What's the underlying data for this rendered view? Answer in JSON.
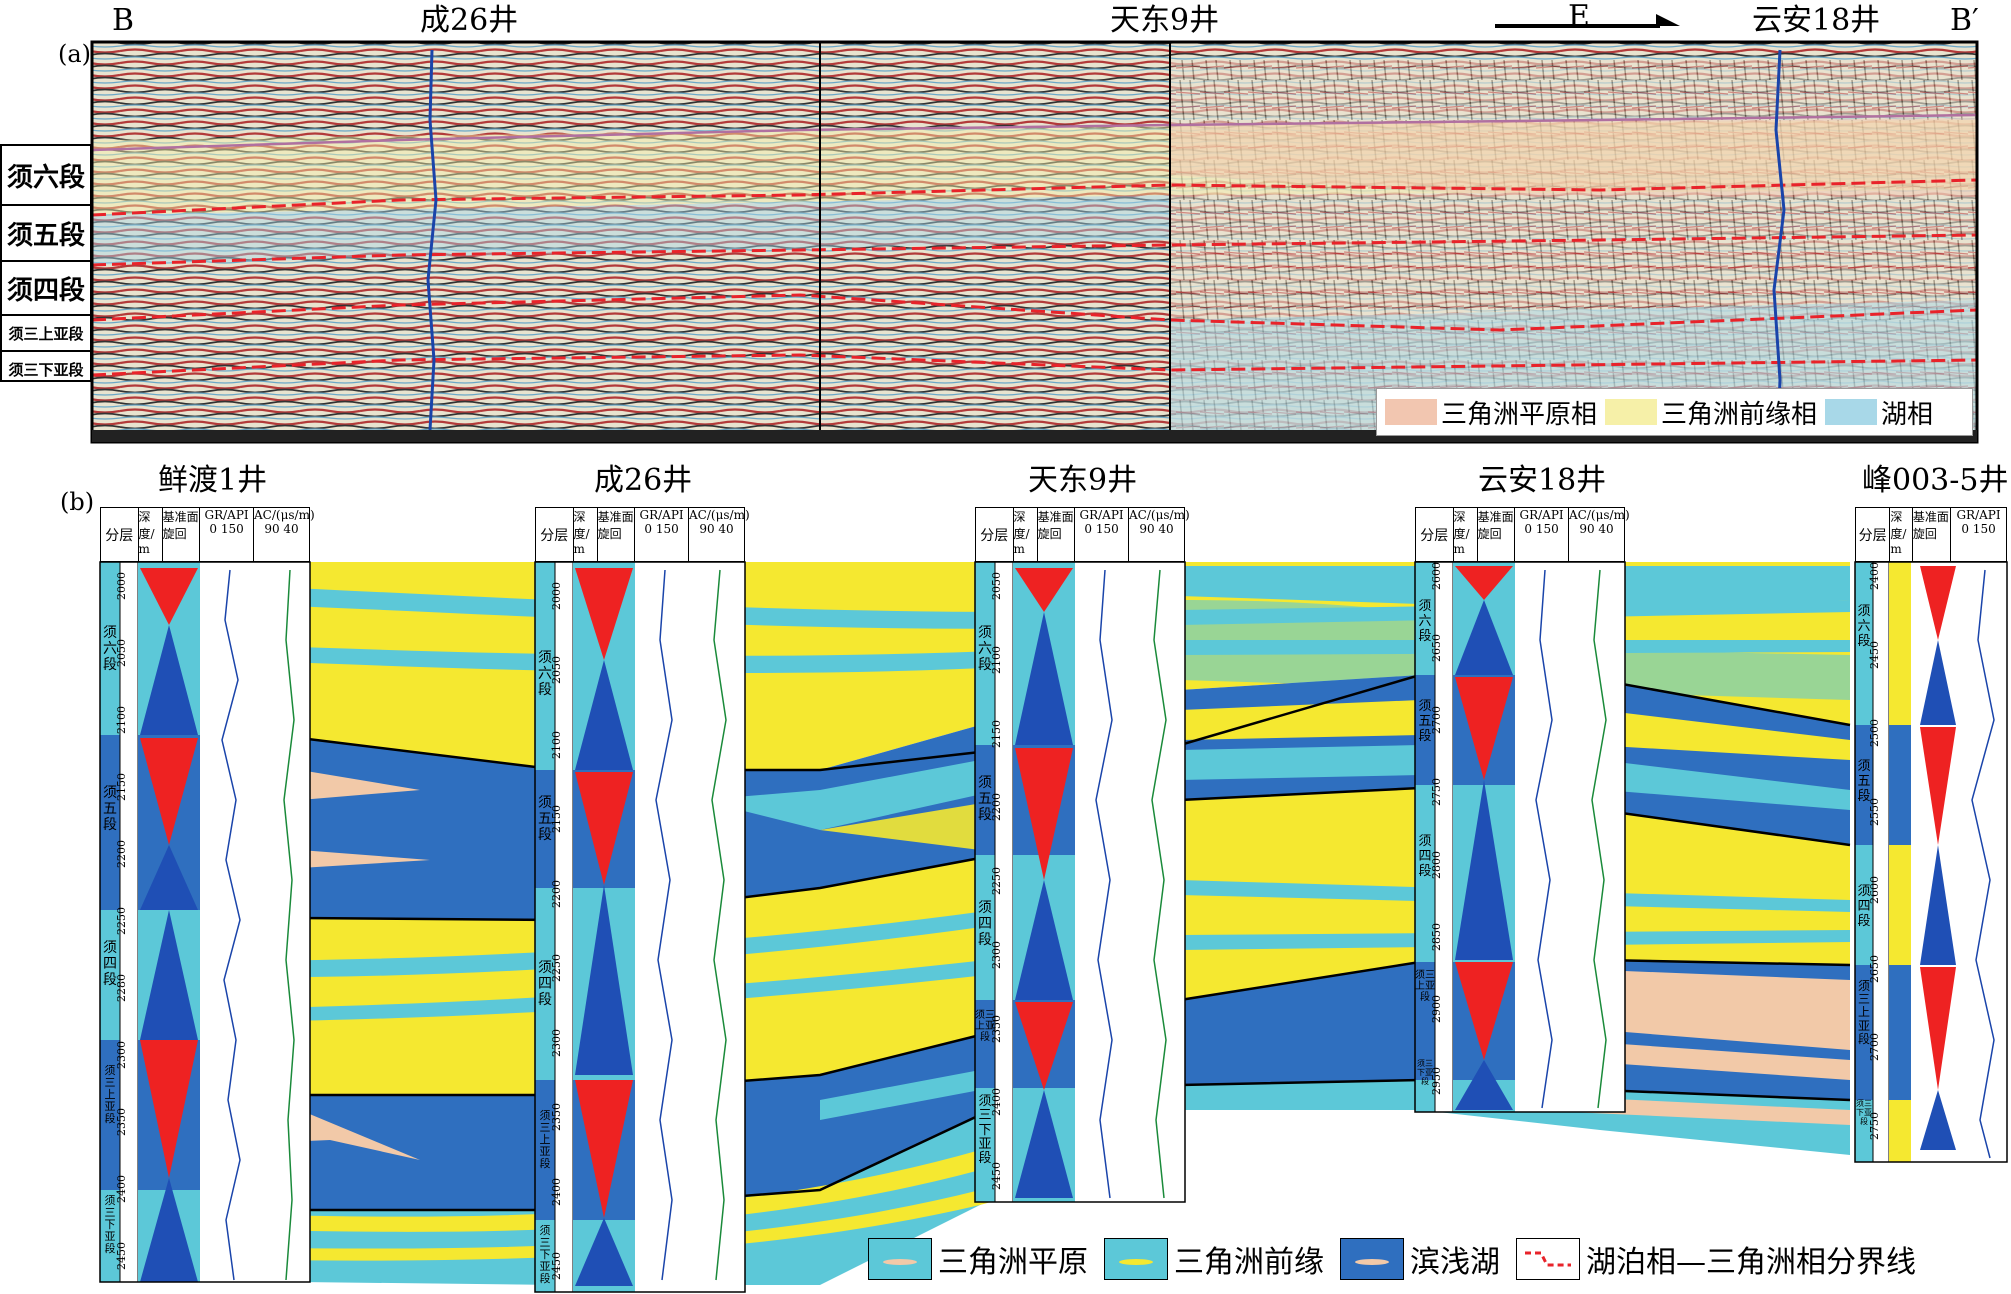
{
  "panel_a": {
    "panel_label": "(a)",
    "end_left": "B",
    "end_right": "B′",
    "direction": "E",
    "wells": [
      "成26井",
      "天东9井",
      "云安18井"
    ],
    "units": [
      "须六段",
      "须五段",
      "须四段",
      "须三上亚段",
      "须三下亚段"
    ],
    "legend": [
      "三角洲平原相",
      "三角洲前缘相",
      "湖相"
    ],
    "legend_colors": [
      "#f2c6b0",
      "#f6f0a8",
      "#a8d8e8"
    ]
  },
  "panel_b": {
    "panel_label": "(b)",
    "wells": [
      "鲜渡1井",
      "成26井",
      "天东9井",
      "云安18井",
      "峰003-5井"
    ],
    "column_headers": {
      "layer": "分层",
      "depth": "深度/m",
      "cycle": "基准面旋回",
      "gr": "GR/API",
      "gr_scale": "0  150",
      "ac": "AC/(μs/m)",
      "ac_scale": "90  40"
    },
    "well_depths": [
      [
        "2000",
        "2050",
        "2100",
        "2150",
        "2200",
        "2250",
        "2280",
        "2300",
        "2350",
        "2400",
        "2450"
      ],
      [
        "2000",
        "2050",
        "2100",
        "2150",
        "2200",
        "2250",
        "2300",
        "2350",
        "2400",
        "2450"
      ],
      [
        "2050",
        "2100",
        "2150",
        "2200",
        "2250",
        "2300",
        "2350",
        "2400",
        "2450"
      ],
      [
        "2600",
        "2650",
        "2700",
        "2750",
        "2800",
        "2850",
        "2900",
        "2950"
      ],
      [
        "2400",
        "2450",
        "2500",
        "2550",
        "2600",
        "2650",
        "2700",
        "2750"
      ]
    ],
    "well_units": [
      [
        "须六段",
        "须五段",
        "须四段",
        "须三上亚段",
        "须三下亚段"
      ],
      [
        "须六段",
        "须五段",
        "须四段",
        "须三上亚段",
        "须三下亚段"
      ],
      [
        "须六段",
        "须五段",
        "须四段",
        "须三上亚段",
        "须三下亚段"
      ],
      [
        "须六段",
        "须五段",
        "须四段",
        "须三上亚段",
        "须三下亚段"
      ],
      [
        "须六段",
        "须五段",
        "须四段",
        "须三上亚段",
        "须三下亚段"
      ]
    ],
    "legend": [
      "三角洲平原",
      "三角洲前缘",
      "滨浅湖",
      "湖泊相—三角洲相分界线"
    ],
    "colors": {
      "delta_plain": "#5cc8d8",
      "delta_front": "#f5e830",
      "shore_lake": "#2f6fbf",
      "sand_tan": "#f2c9a8",
      "cycle_rise": "#1f4fb5",
      "cycle_fall": "#ee2222",
      "boundary": "#e8232a"
    }
  }
}
